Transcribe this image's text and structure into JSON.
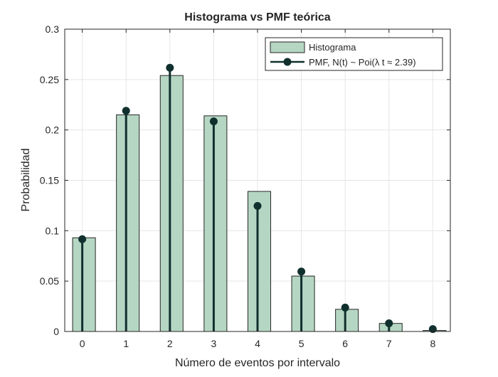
{
  "chart_data": {
    "type": "bar",
    "title": "Histograma vs PMF teórica",
    "xlabel": "Número de eventos por intervalo",
    "ylabel": "Probabilidad",
    "xlim": [
      -0.4,
      8.4
    ],
    "ylim": [
      0,
      0.3
    ],
    "grid": true,
    "legend_position": "top-right",
    "x": [
      0,
      1,
      2,
      3,
      4,
      5,
      6,
      7,
      8
    ],
    "x_tick_labels": [
      "0",
      "1",
      "2",
      "3",
      "4",
      "5",
      "6",
      "7",
      "8"
    ],
    "y_ticks": [
      0,
      0.05,
      0.1,
      0.15,
      0.2,
      0.25,
      0.3
    ],
    "y_tick_labels": [
      "0",
      "0.05",
      "0.1",
      "0.15",
      "0.2",
      "0.25",
      "0.3"
    ],
    "series": [
      {
        "name": "Histograma",
        "type": "bar",
        "color": "#b5d6c3",
        "values": [
          0.093,
          0.215,
          0.254,
          0.214,
          0.139,
          0.055,
          0.022,
          0.008,
          0.001
        ]
      },
      {
        "name": "PMF, N(t) ~ Poi(λ t ≈ 2.39)",
        "type": "stem",
        "color": "#10302e",
        "values": [
          0.0916,
          0.219,
          0.2617,
          0.2085,
          0.1246,
          0.0595,
          0.0237,
          0.0081,
          0.0024
        ]
      }
    ]
  }
}
